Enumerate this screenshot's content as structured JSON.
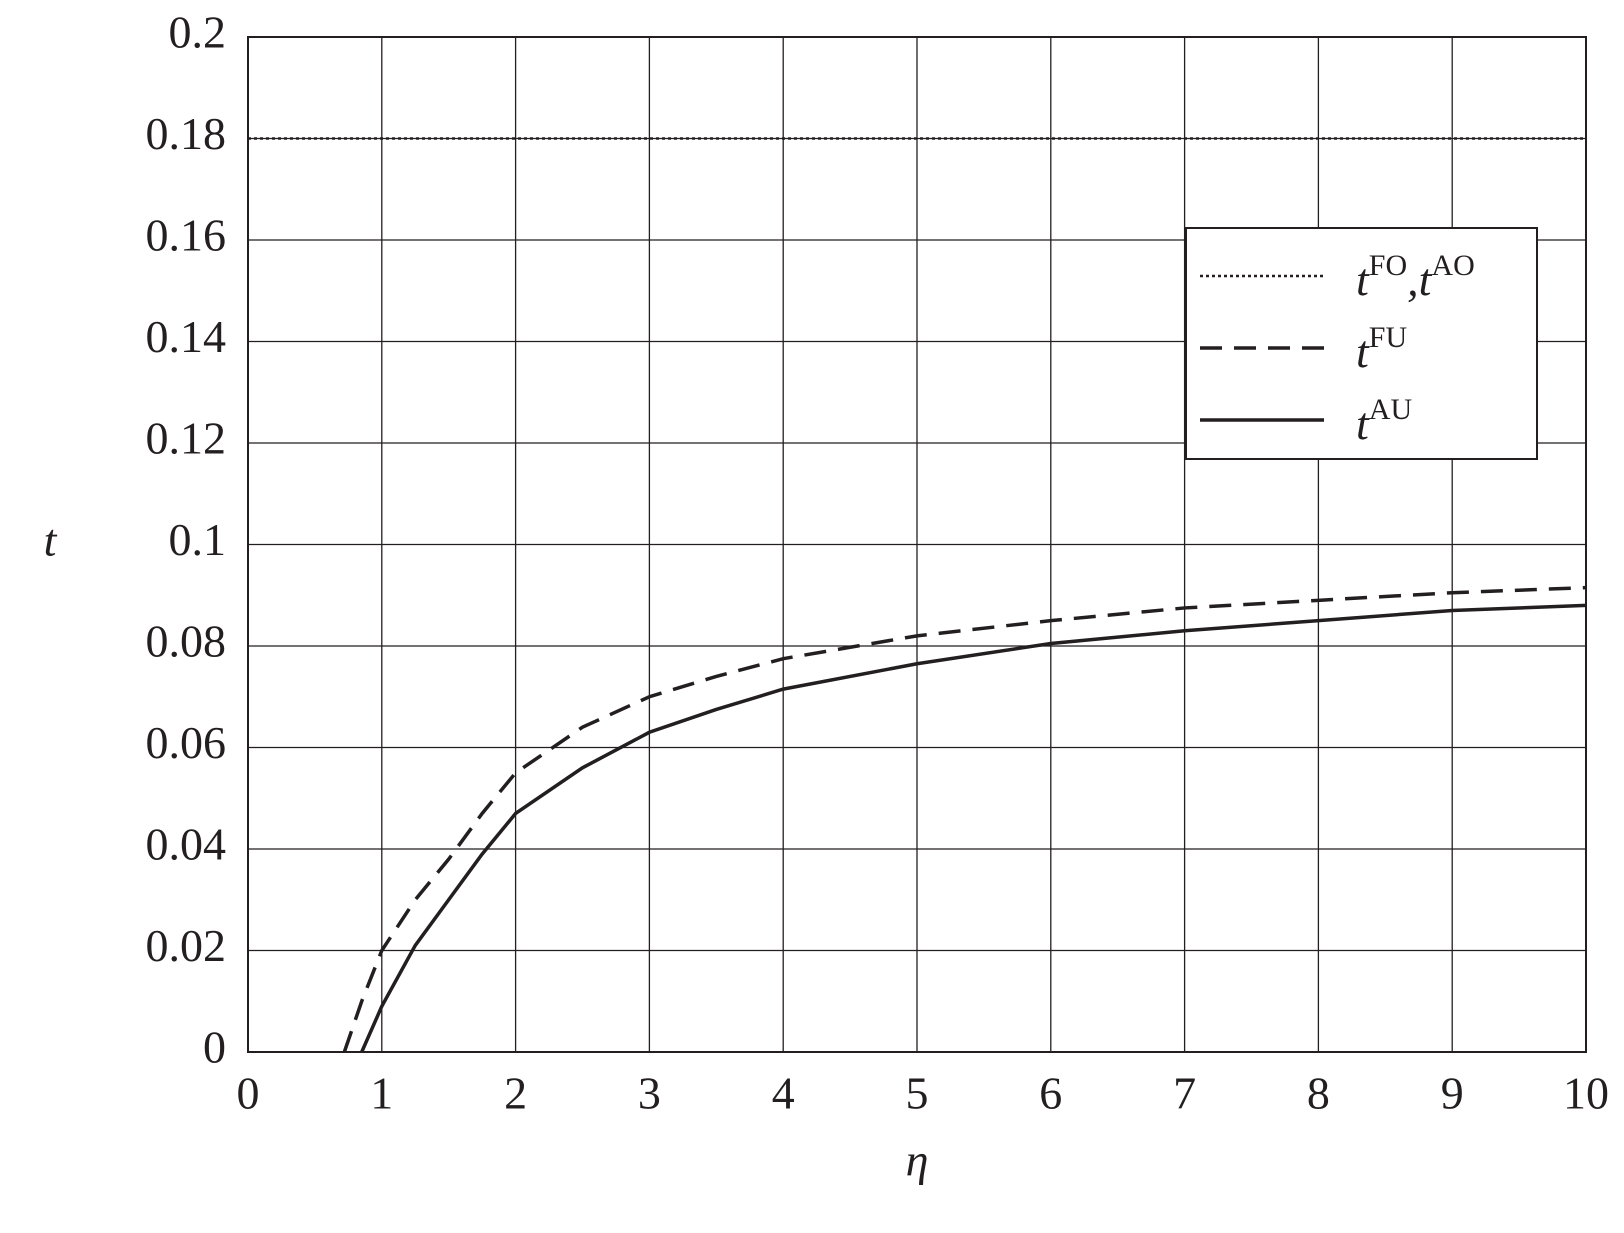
{
  "chart_data": {
    "type": "line",
    "xlabel": "η",
    "ylabel": "t",
    "xlim": [
      0,
      10
    ],
    "xticks": [
      0,
      1,
      2,
      3,
      4,
      5,
      6,
      7,
      8,
      9,
      10
    ],
    "ylim": [
      0,
      0.2
    ],
    "yticks": [
      0,
      0.02,
      0.04,
      0.06,
      0.08,
      0.1,
      0.12,
      0.14,
      0.16,
      0.18,
      0.2
    ],
    "grid": true,
    "legend": "upper right",
    "series": [
      {
        "name": "tFO,tAO",
        "color": "#231f20",
        "style": "dotted",
        "x": [
          0,
          10
        ],
        "values": [
          0.18,
          0.18
        ]
      },
      {
        "name": "tFU",
        "color": "#231f20",
        "style": "dashed",
        "x": [
          0.72,
          0.85,
          1,
          1.25,
          1.5,
          1.75,
          2,
          2.5,
          3,
          3.5,
          4,
          5,
          6,
          7,
          8,
          9,
          10
        ],
        "values": [
          0,
          0.01,
          0.02,
          0.03,
          0.038,
          0.047,
          0.055,
          0.064,
          0.07,
          0.074,
          0.0775,
          0.082,
          0.085,
          0.0875,
          0.089,
          0.0905,
          0.0915
        ]
      },
      {
        "name": "tAU",
        "color": "#231f20",
        "style": "solid",
        "x": [
          0.85,
          1,
          1.25,
          1.5,
          1.75,
          2,
          2.5,
          3,
          3.5,
          4,
          5,
          6,
          7,
          8,
          9,
          10
        ],
        "values": [
          0,
          0.009,
          0.021,
          0.03,
          0.039,
          0.047,
          0.056,
          0.063,
          0.0675,
          0.0715,
          0.0765,
          0.0805,
          0.083,
          0.085,
          0.087,
          0.088
        ]
      }
    ]
  }
}
